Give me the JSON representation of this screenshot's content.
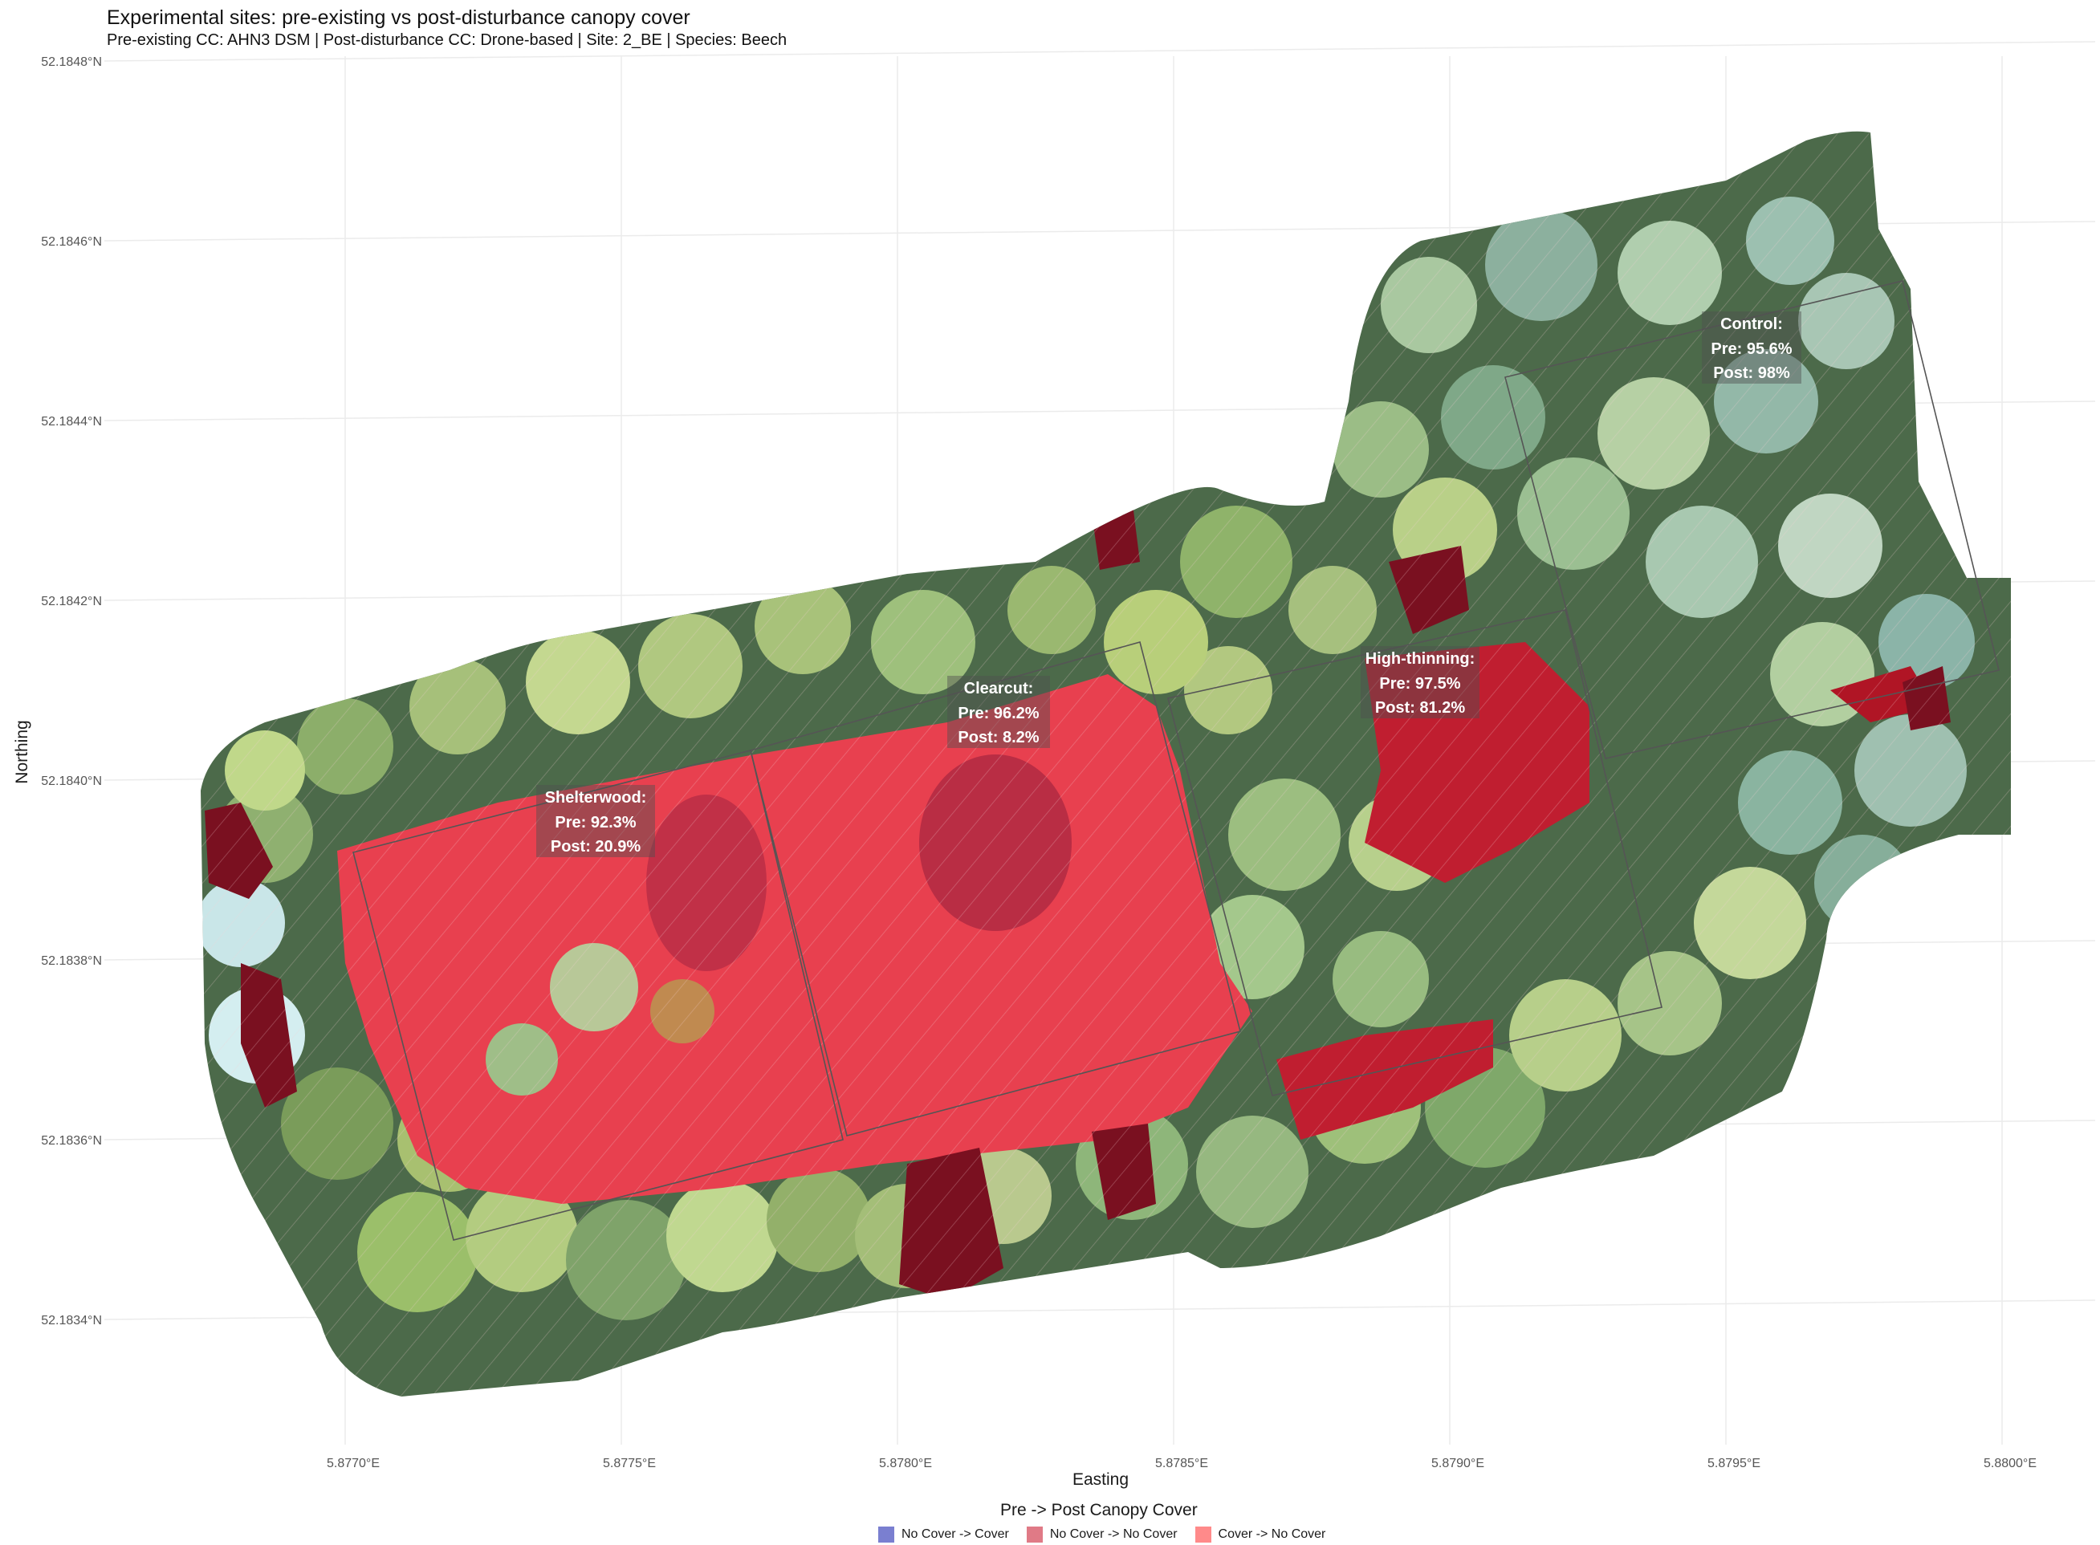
{
  "title": "Experimental sites: pre-existing vs post-disturbance canopy cover",
  "subtitle": "Pre-existing CC: AHN3 DSM | Post-disturbance CC: Drone-based | Site: 2_BE | Species: Beech",
  "axes": {
    "x_label": "Easting",
    "y_label": "Northing",
    "x_ticks": [
      "5.8770°E",
      "5.8775°E",
      "5.8780°E",
      "5.8785°E",
      "5.8790°E",
      "5.8795°E",
      "5.8800°E"
    ],
    "y_ticks": [
      "52.1848°N",
      "52.1846°N",
      "52.1844°N",
      "52.1842°N",
      "52.1840°N",
      "52.1838°N",
      "52.1836°N",
      "52.1834°N"
    ]
  },
  "sites": [
    {
      "name": "Shelterwood:",
      "pre": "Pre: 92.3%",
      "post": "Post: 20.9%"
    },
    {
      "name": "Clearcut:",
      "pre": "Pre: 96.2%",
      "post": "Post: 8.2%"
    },
    {
      "name": "High-thinning:",
      "pre": "Pre: 97.5%",
      "post": "Post: 81.2%"
    },
    {
      "name": "Control:",
      "pre": "Pre: 95.6%",
      "post": "Post: 98%"
    }
  ],
  "legend": {
    "title": "Pre -> Post Canopy Cover",
    "items": [
      {
        "label": "No Cover -> Cover",
        "color": "#7a7fd0"
      },
      {
        "label": "No Cover -> No Cover",
        "color": "#e07a86"
      },
      {
        "label": "Cover -> No Cover",
        "color": "#ff8a8a"
      }
    ]
  },
  "colors": {
    "canopy_dark": "#2f4a3a",
    "canopy_green": "#7fa060",
    "canopy_light": "#b8c98a",
    "ground_red": "#e8404f",
    "ground_dark_red": "#8a1020",
    "grid": "#ebebeb"
  }
}
